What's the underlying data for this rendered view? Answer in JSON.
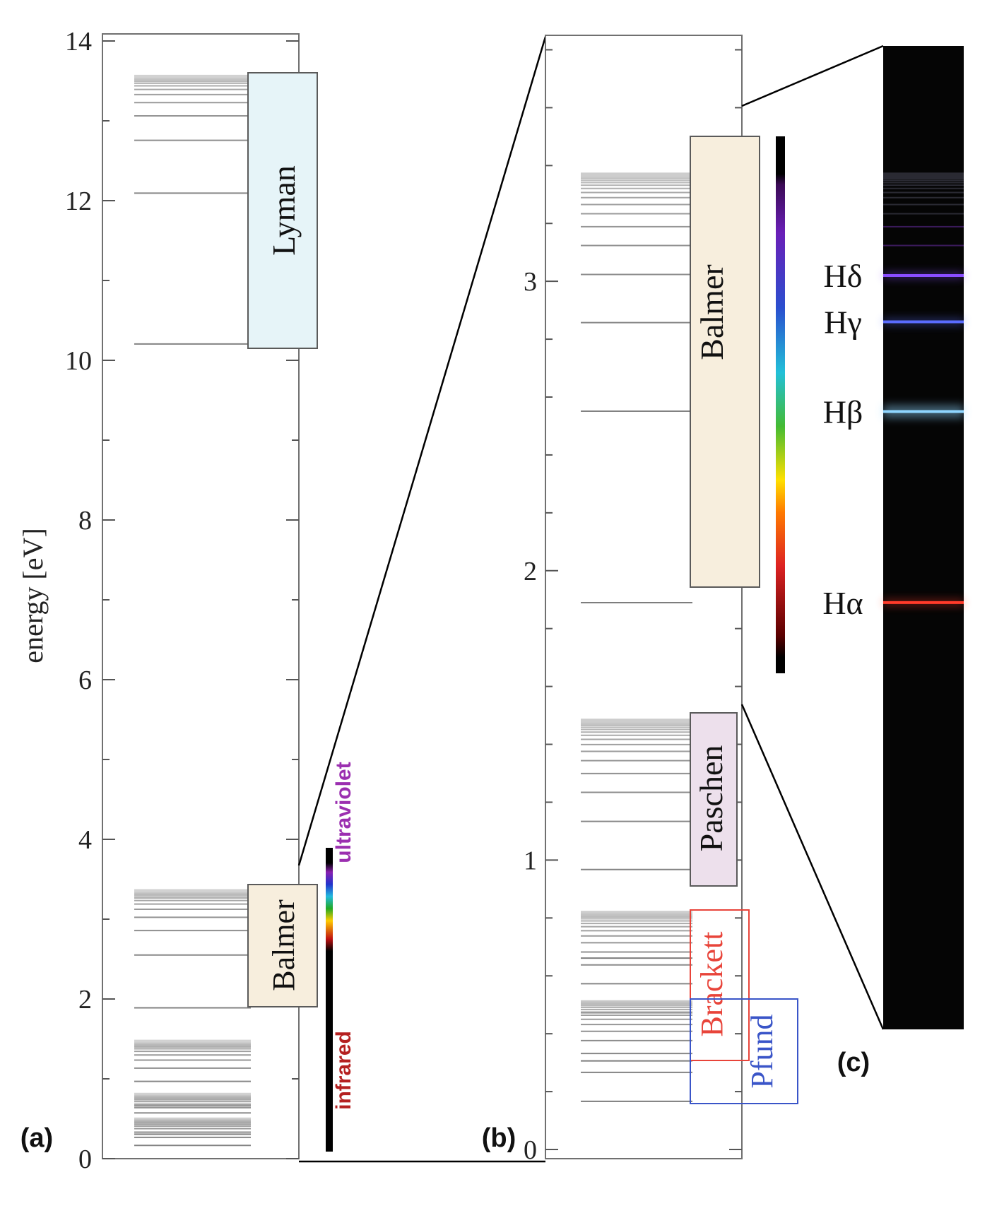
{
  "panel_a": {
    "label": "(a)",
    "ylabel": "energy [eV]",
    "ylim": [
      0,
      14
    ],
    "ticks": [
      "0",
      "2",
      "4",
      "6",
      "8",
      "10",
      "12",
      "14"
    ],
    "series_labels": {
      "lyman": "Lyman",
      "balmer": "Balmer"
    },
    "band_labels": {
      "ultraviolet": "ultraviolet",
      "infrared": "infrared"
    }
  },
  "panel_b": {
    "label": "(b)",
    "ylim": [
      0,
      3.85
    ],
    "ticks": [
      "0",
      "1",
      "2",
      "3"
    ],
    "series_labels": {
      "balmer": "Balmer",
      "paschen": "Paschen",
      "brackett": "Brackett",
      "pfund": "Pfund"
    }
  },
  "panel_c": {
    "label": "(c)",
    "lines": [
      {
        "name": "Hδ",
        "energy": 3.02,
        "color": "#8a4dff"
      },
      {
        "name": "Hγ",
        "energy": 2.86,
        "color": "#5a6cff"
      },
      {
        "name": "Hβ",
        "energy": 2.55,
        "color": "#8fd6ff"
      },
      {
        "name": "Hα",
        "energy": 1.89,
        "color": "#ff3b2a"
      }
    ]
  },
  "colors": {
    "lyman_box": "#e6f4f8",
    "balmer_box": "#f7eedd",
    "paschen_box": "#ede0ec",
    "brackett_border": "#e8443a",
    "pfund_border": "#3a55c8",
    "brackett_text": "#e8443a",
    "pfund_text": "#3a55c8",
    "ultraviolet_text": "#9b2fb0",
    "infrared_text": "#b52020"
  }
}
